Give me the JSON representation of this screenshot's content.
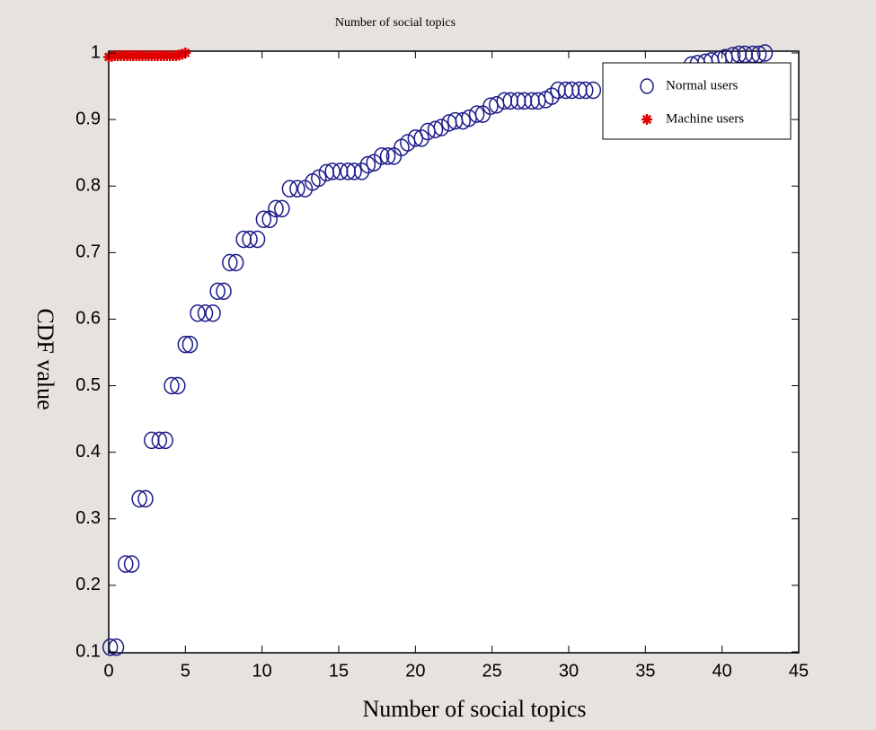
{
  "chart_data": {
    "type": "scatter",
    "title": "Number of social topics",
    "xlabel": "Number of social topics",
    "ylabel": "CDF value",
    "xlim": [
      0,
      45
    ],
    "ylim": [
      0.1,
      1
    ],
    "xticks": [
      0,
      5,
      10,
      15,
      20,
      25,
      30,
      35,
      40,
      45
    ],
    "yticks": [
      0.1,
      0.2,
      0.3,
      0.4,
      0.5,
      0.6,
      0.7,
      0.8,
      0.9,
      1
    ],
    "grid": false,
    "legend": "upper right",
    "series": [
      {
        "name": "Normal users",
        "color": "#1c1c8a",
        "marker": "circle",
        "x": [
          0.1,
          0.5,
          1.1,
          1.5,
          2,
          2.4,
          2.8,
          3.3,
          3.7,
          4.1,
          4.5,
          5,
          5.3,
          5.8,
          6.3,
          6.8,
          7.1,
          7.5,
          7.9,
          8.3,
          8.8,
          9.2,
          9.7,
          10.1,
          10.5,
          10.9,
          11.3,
          11.8,
          12.3,
          12.8,
          13.3,
          13.7,
          14.2,
          14.6,
          15.1,
          15.6,
          16,
          16.5,
          16.9,
          17.3,
          17.8,
          18.2,
          18.6,
          19.1,
          19.5,
          20,
          20.4,
          20.8,
          21.3,
          21.7,
          22.2,
          22.6,
          23.1,
          23.5,
          24,
          24.4,
          24.9,
          25.3,
          25.8,
          26.2,
          26.7,
          27.1,
          27.6,
          28,
          28.5,
          28.9,
          29.3,
          29.8,
          30.2,
          30.7,
          31.1,
          31.6,
          38,
          38.4,
          38.9,
          39.3,
          39.8,
          40.2,
          40.7,
          41.1,
          41.5,
          42,
          42.4,
          42.8
        ],
        "values": [
          0.107,
          0.107,
          0.232,
          0.232,
          0.33,
          0.33,
          0.418,
          0.418,
          0.418,
          0.5,
          0.5,
          0.562,
          0.562,
          0.609,
          0.609,
          0.609,
          0.642,
          0.642,
          0.685,
          0.685,
          0.72,
          0.72,
          0.72,
          0.75,
          0.75,
          0.766,
          0.766,
          0.796,
          0.796,
          0.796,
          0.806,
          0.812,
          0.82,
          0.822,
          0.822,
          0.822,
          0.822,
          0.822,
          0.832,
          0.835,
          0.845,
          0.845,
          0.845,
          0.858,
          0.865,
          0.872,
          0.872,
          0.882,
          0.885,
          0.888,
          0.895,
          0.898,
          0.898,
          0.902,
          0.908,
          0.908,
          0.92,
          0.922,
          0.928,
          0.928,
          0.928,
          0.928,
          0.928,
          0.928,
          0.93,
          0.935,
          0.944,
          0.944,
          0.944,
          0.944,
          0.944,
          0.944,
          0.982,
          0.984,
          0.986,
          0.988,
          0.99,
          0.993,
          0.996,
          0.998,
          0.998,
          0.998,
          0.998,
          1.0
        ]
      },
      {
        "name": "Machine users",
        "color": "#e00000",
        "marker": "star",
        "x": [
          0,
          0.2,
          0.4,
          0.6,
          0.8,
          1,
          1.2,
          1.4,
          1.6,
          1.8,
          2,
          2.2,
          2.4,
          2.6,
          2.8,
          3,
          3.2,
          3.4,
          3.6,
          3.8,
          4,
          4.2,
          4.4,
          4.6,
          4.8,
          5
        ],
        "values": [
          0.994,
          0.995,
          0.996,
          0.996,
          0.996,
          0.996,
          0.996,
          0.996,
          0.996,
          0.996,
          0.996,
          0.996,
          0.996,
          0.996,
          0.996,
          0.996,
          0.996,
          0.996,
          0.996,
          0.996,
          0.996,
          0.996,
          0.996,
          0.997,
          0.998,
          1.0
        ]
      }
    ]
  }
}
